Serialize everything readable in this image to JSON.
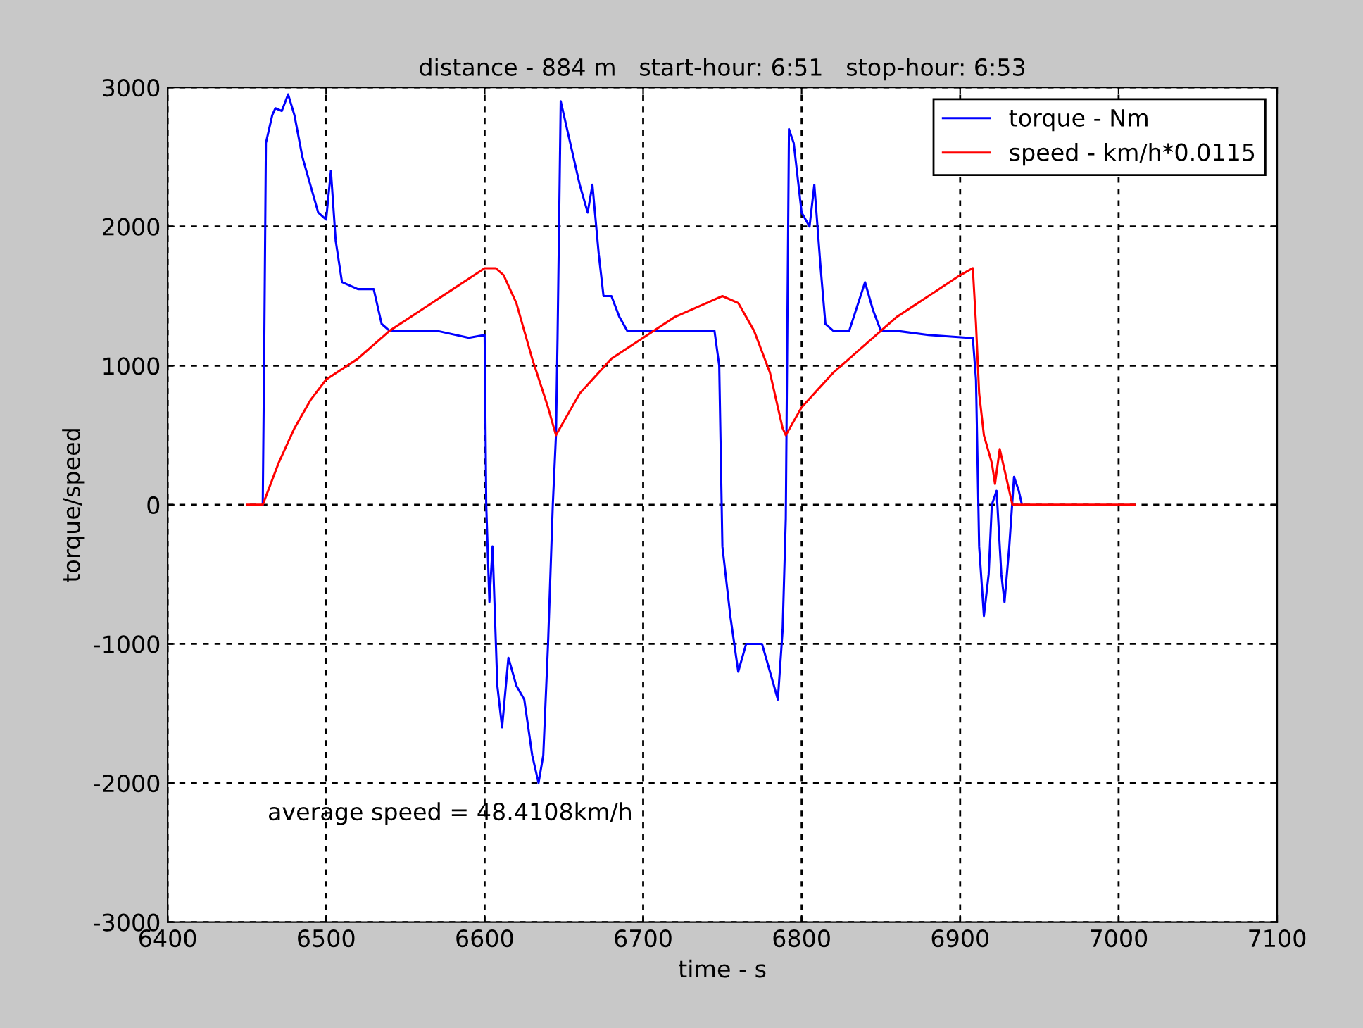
{
  "chart_data": {
    "type": "line",
    "title": "distance - 884 m   start-hour: 6:51   stop-hour: 6:53",
    "xlabel": "time - s",
    "ylabel": "torque/speed",
    "xlim": [
      6400,
      7100
    ],
    "xticks": [
      6400,
      6500,
      6600,
      6700,
      6800,
      6900,
      7000,
      7100
    ],
    "ylim": [
      -3000,
      3000
    ],
    "yticks": [
      -3000,
      -2000,
      -1000,
      0,
      1000,
      2000,
      3000
    ],
    "grid": true,
    "legend": "top right",
    "marker": "none",
    "line_style": "solid",
    "annotations": [
      "average speed = 48.4108km/h"
    ],
    "series": [
      {
        "name": "torque - Nm",
        "color": "#0000ff",
        "x": [
          6460,
          6461,
          6462,
          6466,
          6468,
          6472,
          6476,
          6480,
          6485,
          6490,
          6495,
          6500,
          6503,
          6506,
          6510,
          6520,
          6530,
          6535,
          6540,
          6550,
          6570,
          6590,
          6600,
          6601,
          6603,
          6605,
          6608,
          6611,
          6615,
          6620,
          6625,
          6630,
          6634,
          6637,
          6640,
          6643,
          6645,
          6646,
          6648,
          6652,
          6660,
          6665,
          6668,
          6672,
          6675,
          6680,
          6685,
          6690,
          6700,
          6720,
          6745,
          6748,
          6750,
          6752,
          6755,
          6760,
          6765,
          6775,
          6780,
          6785,
          6788,
          6790,
          6792,
          6795,
          6800,
          6805,
          6808,
          6812,
          6815,
          6820,
          6830,
          6840,
          6845,
          6850,
          6860,
          6880,
          6905,
          6908,
          6910,
          6912,
          6915,
          6918,
          6920,
          6923,
          6926,
          6928,
          6931,
          6934,
          6937,
          6939
        ],
        "values": [
          0,
          1200,
          2600,
          2800,
          2850,
          2830,
          2950,
          2800,
          2500,
          2300,
          2100,
          2050,
          2400,
          1900,
          1600,
          1550,
          1550,
          1300,
          1250,
          1250,
          1250,
          1200,
          1220,
          0,
          -700,
          -300,
          -1300,
          -1600,
          -1100,
          -1300,
          -1400,
          -1800,
          -2000,
          -1800,
          -1000,
          0,
          500,
          1200,
          2900,
          2700,
          2300,
          2100,
          2300,
          1800,
          1500,
          1500,
          1350,
          1250,
          1250,
          1250,
          1250,
          1000,
          -300,
          -500,
          -800,
          -1200,
          -1000,
          -1000,
          -1200,
          -1400,
          -900,
          -100,
          2700,
          2600,
          2100,
          2000,
          2300,
          1700,
          1300,
          1250,
          1250,
          1600,
          1400,
          1250,
          1250,
          1220,
          1200,
          1200,
          900,
          -300,
          -800,
          -500,
          0,
          100,
          -500,
          -700,
          -300,
          200,
          100,
          0
        ]
      },
      {
        "name": "speed - km/h*0.0115",
        "color": "#ff0000",
        "x": [
          6450,
          6460,
          6470,
          6480,
          6490,
          6500,
          6520,
          6540,
          6560,
          6580,
          6600,
          6607,
          6612,
          6620,
          6630,
          6640,
          6645,
          6660,
          6680,
          6700,
          6720,
          6740,
          6750,
          6760,
          6770,
          6780,
          6788,
          6790,
          6800,
          6820,
          6840,
          6860,
          6880,
          6900,
          6908,
          6910,
          6912,
          6915,
          6920,
          6922,
          6925,
          6928,
          6933,
          7010
        ],
        "values": [
          0,
          0,
          300,
          550,
          750,
          900,
          1050,
          1250,
          1400,
          1550,
          1700,
          1700,
          1650,
          1450,
          1050,
          700,
          500,
          800,
          1050,
          1200,
          1350,
          1450,
          1500,
          1450,
          1250,
          950,
          550,
          500,
          700,
          950,
          1150,
          1350,
          1500,
          1650,
          1700,
          1300,
          800,
          500,
          300,
          150,
          400,
          250,
          0,
          0
        ]
      }
    ]
  }
}
